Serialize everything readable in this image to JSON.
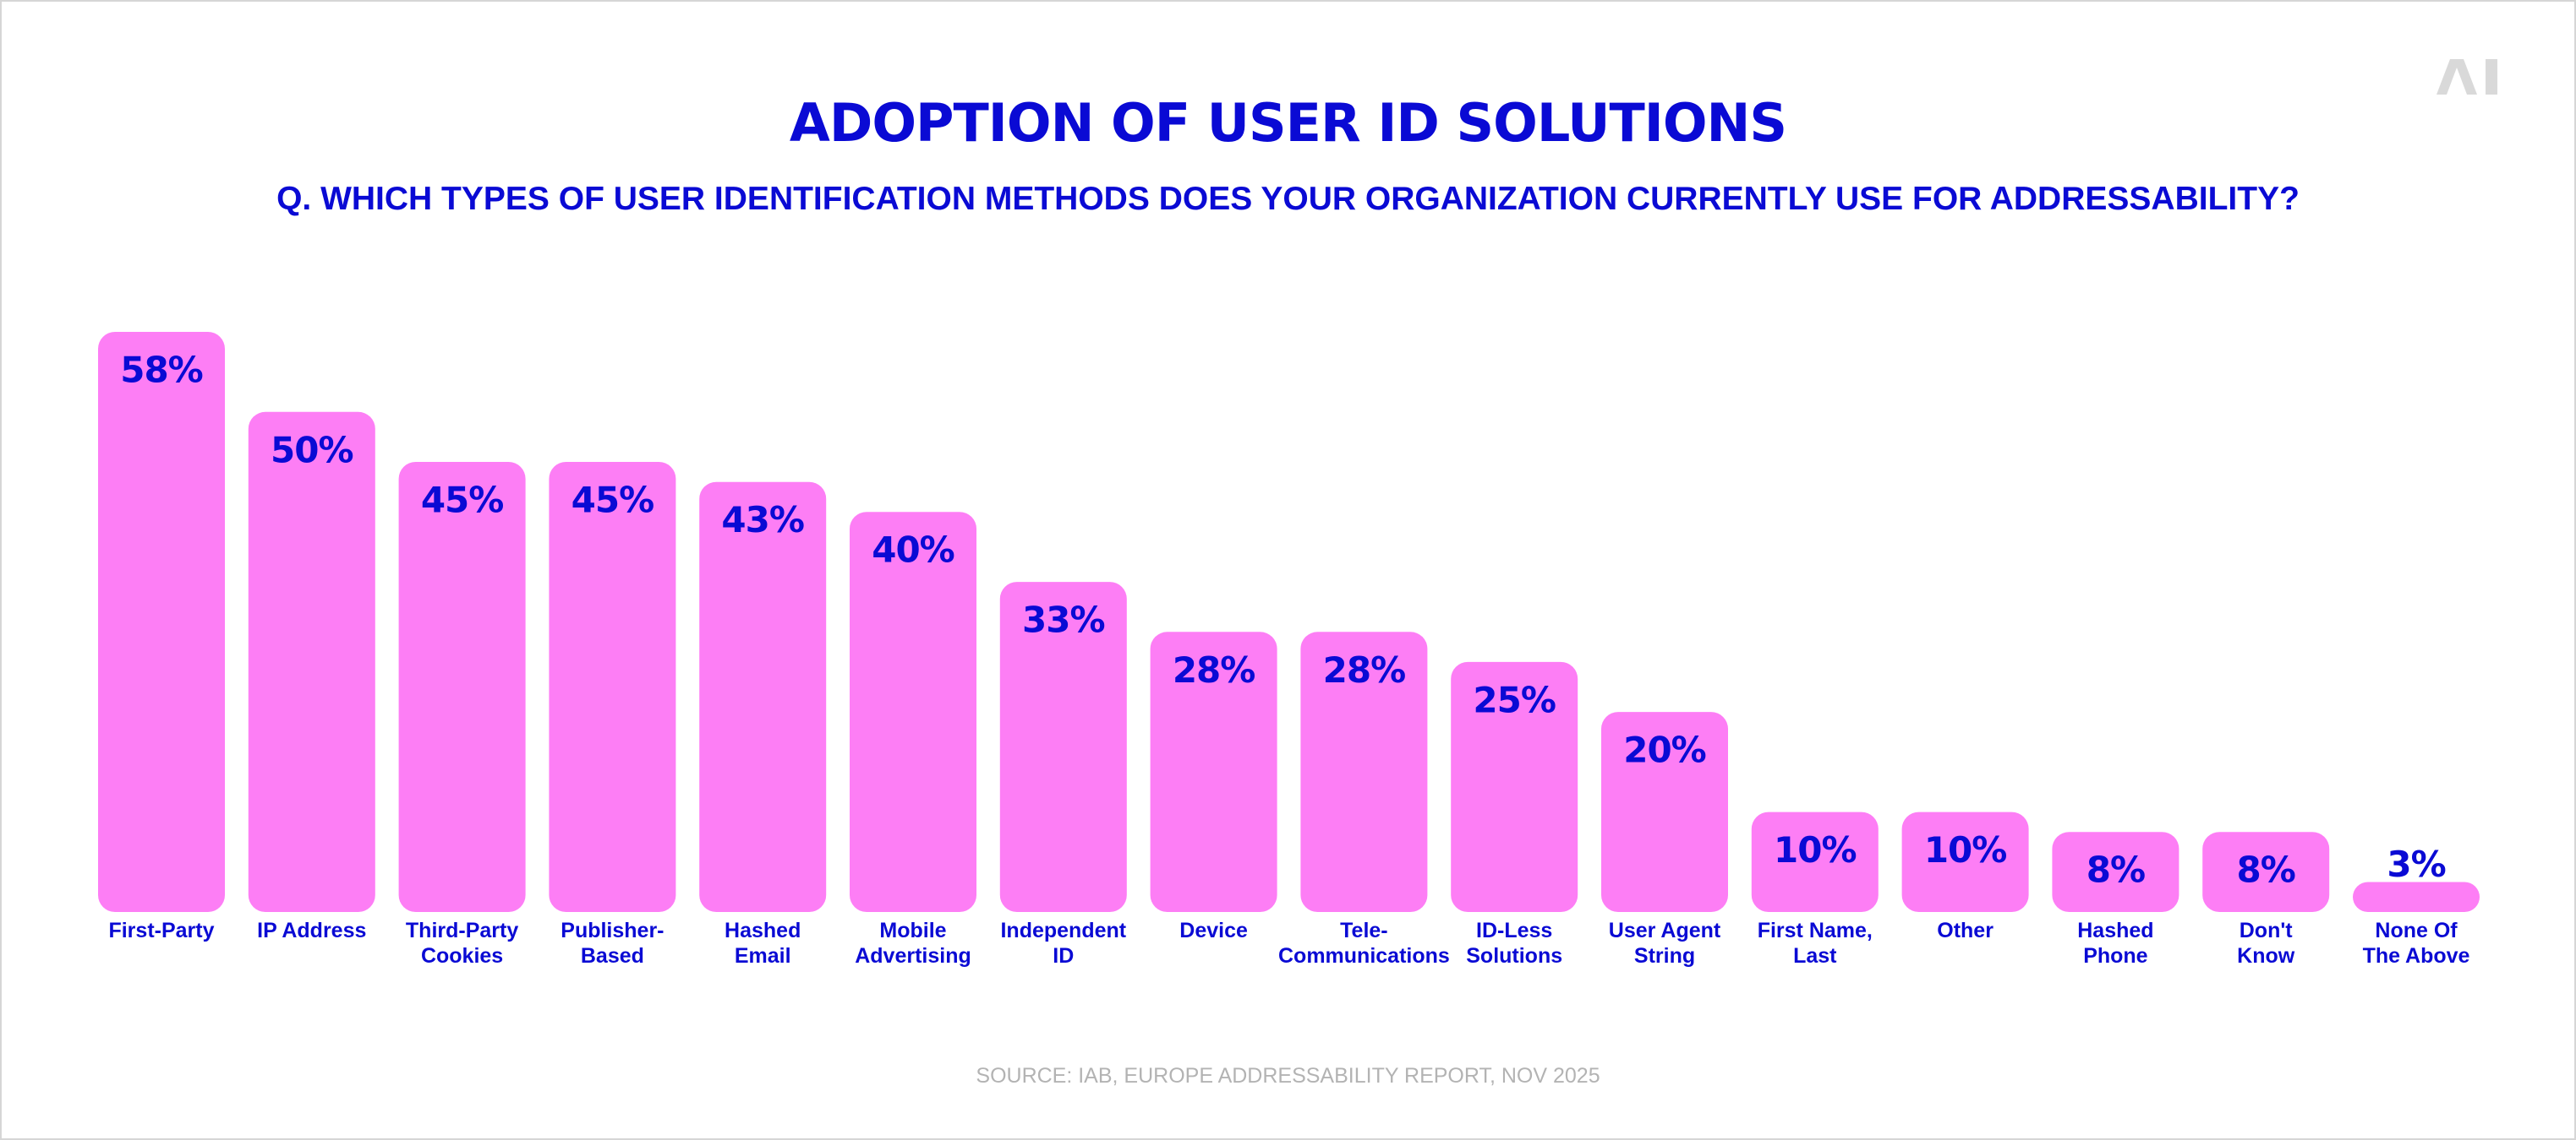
{
  "title": "ADOPTION OF USER ID SOLUTIONS",
  "subtitle": "Q. WHICH TYPES OF USER IDENTIFICATION METHODS DOES YOUR ORGANIZATION CURRENTLY USE FOR ADDRESSABILITY?",
  "source": "SOURCE: IAB, EUROPE ADDRESSABILITY REPORT, NOV 2025",
  "logo": {
    "icon": "ai-logo-icon",
    "text": "AI",
    "color": "#d9d9d9"
  },
  "colors": {
    "bar": "#fd7ef5",
    "text": "#0a0ad4",
    "source": "#b3b3b3"
  },
  "chart_data": {
    "type": "bar",
    "categories": [
      [
        "First-Party"
      ],
      [
        "IP Address"
      ],
      [
        "Third-Party",
        "Cookies"
      ],
      [
        "Publisher-",
        "Based"
      ],
      [
        "Hashed",
        "Email"
      ],
      [
        "Mobile",
        "Advertising"
      ],
      [
        "Independent",
        "ID"
      ],
      [
        "Device"
      ],
      [
        "Tele-",
        "Communications"
      ],
      [
        "ID-Less",
        "Solutions"
      ],
      [
        "User Agent",
        "String"
      ],
      [
        "First Name,",
        "Last"
      ],
      [
        "Other"
      ],
      [
        "Hashed",
        "Phone"
      ],
      [
        "Don't",
        "Know"
      ],
      [
        "None Of",
        "The Above"
      ]
    ],
    "values": [
      58,
      50,
      45,
      45,
      43,
      40,
      33,
      28,
      28,
      25,
      20,
      10,
      10,
      8,
      8,
      3
    ],
    "value_labels": [
      "58%",
      "50%",
      "45%",
      "45%",
      "43%",
      "40%",
      "33%",
      "28%",
      "28%",
      "25%",
      "20%",
      "10%",
      "10%",
      "8%",
      "8%",
      "3%"
    ],
    "unit": "%",
    "ylim": [
      0,
      58
    ],
    "grid": false,
    "legend": "none"
  }
}
